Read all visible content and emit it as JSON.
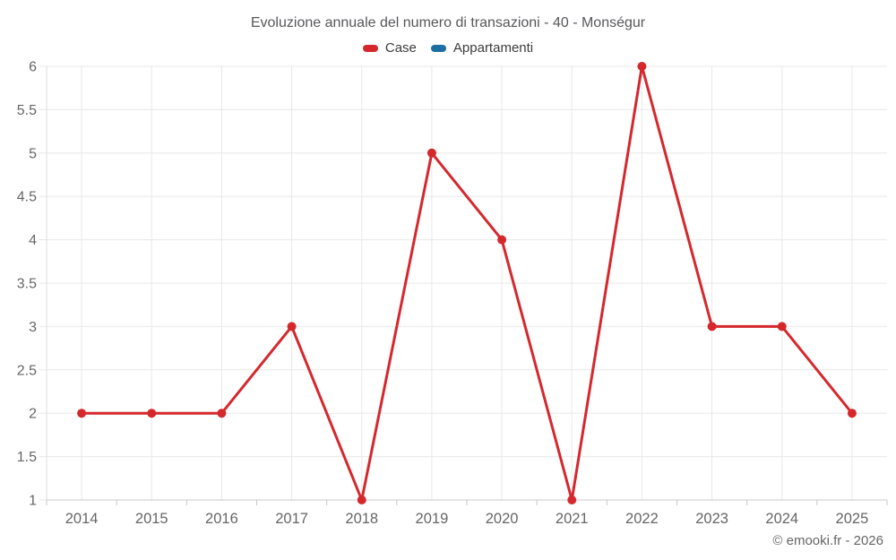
{
  "header": {
    "title": "Evoluzione annuale del numero di transazioni - 40 - Monségur"
  },
  "legend": {
    "items": [
      {
        "label": "Case",
        "color": "#d5282d"
      },
      {
        "label": "Appartamenti",
        "color": "#1d6fa3"
      }
    ]
  },
  "footer": {
    "credit": "© emooki.fr - 2026"
  },
  "chart_data": {
    "type": "line",
    "title": "Evoluzione annuale del numero di transazioni - 40 - Monségur",
    "categories": [
      "2014",
      "2015",
      "2016",
      "2017",
      "2018",
      "2019",
      "2020",
      "2021",
      "2022",
      "2023",
      "2024",
      "2025"
    ],
    "series": [
      {
        "name": "Case",
        "color": "#d5282d",
        "values": [
          2,
          2,
          2,
          3,
          1,
          5,
          4,
          1,
          6,
          3,
          3,
          2
        ]
      },
      {
        "name": "Appartamenti",
        "color": "#1d6fa3",
        "values": []
      }
    ],
    "xlabel": "",
    "ylabel": "",
    "ylim": [
      1,
      6
    ],
    "ytick_step": 0.5,
    "ytick_labels": [
      "1",
      "1.5",
      "2",
      "2.5",
      "3",
      "3.5",
      "4",
      "4.5",
      "5",
      "5.5",
      "6"
    ],
    "grid": true,
    "legend_position": "top",
    "marker": "circle",
    "annotations": [
      "© emooki.fr - 2026"
    ]
  },
  "colors": {
    "background": "#ffffff",
    "grid": "#e8e8e8",
    "axis": "#c9c9c9",
    "axis_light": "#dcdcdc",
    "tick_label": "#666666",
    "title_text": "#58585c",
    "legend_text": "#3c3c3c",
    "footer_text": "#666666"
  }
}
